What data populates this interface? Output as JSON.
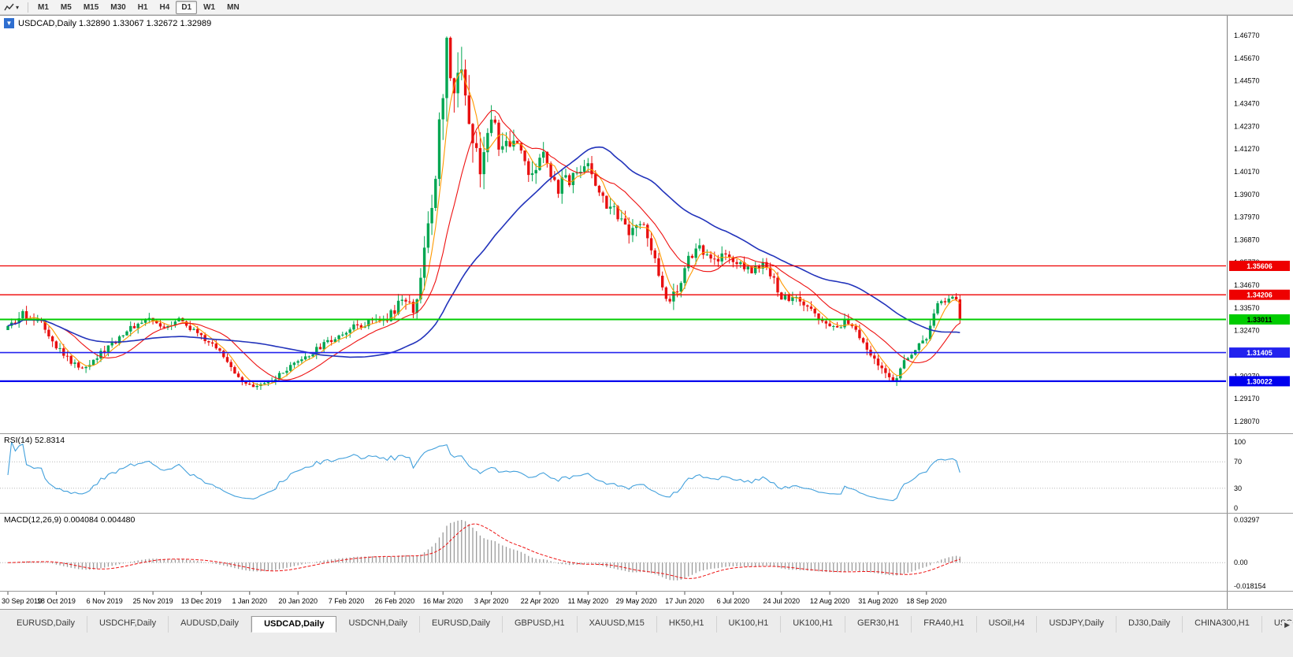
{
  "toolbar": {
    "timeframes": [
      "M1",
      "M5",
      "M15",
      "M30",
      "H1",
      "H4",
      "D1",
      "W1",
      "MN"
    ],
    "active_timeframe": "D1",
    "tools_icon": "chart-line",
    "caret_glyph": "▾"
  },
  "chart_header": {
    "collapse_glyph": "▼",
    "text": "USDCAD,Daily 1.32890 1.33067 1.32672 1.32989"
  },
  "rsi_panel": {
    "label": "RSI(14) 52.8314",
    "axis_labels": [
      "100",
      "70",
      "30",
      "0"
    ],
    "dotted_levels": [
      70,
      30
    ],
    "line_color": "#42a0dc"
  },
  "macd_panel": {
    "label": "MACD(12,26,9) 0.004084 0.004480",
    "axis_labels": [
      "0.03297",
      "0.00",
      "-0.018154"
    ]
  },
  "tabs": {
    "items": [
      "EURUSD,Daily",
      "USDCHF,Daily",
      "AUDUSD,Daily",
      "USDCAD,Daily",
      "USDCNH,Daily",
      "EURUSD,Daily",
      "GBPUSD,H1",
      "XAUUSD,M15",
      "HK50,H1",
      "UK100,H1",
      "UK100,H1",
      "GER30,H1",
      "FRA40,H1",
      "USOil,H4",
      "USDJPY,Daily",
      "DJ30,Daily",
      "CHINA300,H1",
      "USOil,H"
    ],
    "active_index": 3,
    "scroll_icon": "▶"
  },
  "chart_data": {
    "type": "candlestick",
    "symbol": "USDCAD",
    "timeframe": "Daily",
    "ohlc": {
      "open": 1.3289,
      "high": 1.33067,
      "low": 1.32672,
      "close": 1.32989
    },
    "bars": 257,
    "bars_per_x_label": 13,
    "x_labels": [
      "30 Sep 2019",
      "18 Oct 2019",
      "6 Nov 2019",
      "25 Nov 2019",
      "13 Dec 2019",
      "1 Jan 2020",
      "20 Jan 2020",
      "7 Feb 2020",
      "26 Feb 2020",
      "16 Mar 2020",
      "3 Apr 2020",
      "22 Apr 2020",
      "11 May 2020",
      "29 May 2020",
      "17 Jun 2020",
      "6 Jul 2020",
      "24 Jul 2020",
      "12 Aug 2020",
      "31 Aug 2020",
      "18 Sep 2020"
    ],
    "price_axis_labels": [
      "1.46770",
      "1.45670",
      "1.44570",
      "1.43470",
      "1.42370",
      "1.41270",
      "1.40170",
      "1.39070",
      "1.37970",
      "1.36870",
      "1.35770",
      "1.34670",
      "1.33570",
      "1.32470",
      "1.31370",
      "1.30270",
      "1.29170",
      "1.28070"
    ],
    "visible_high": 1.4672,
    "visible_low": 1.2949,
    "candle_up_color": "#00a651",
    "candle_down_color": "#e81010",
    "horizontal_lines": [
      {
        "price": 1.35606,
        "label": "1.35606",
        "color": "#ee0000",
        "text_color": "#ffffff",
        "width": 1.3
      },
      {
        "price": 1.34206,
        "label": "1.34206",
        "color": "#ee0000",
        "text_color": "#ffffff",
        "width": 1.3
      },
      {
        "price": 1.33011,
        "label": "1.33011",
        "color": "#00cc00",
        "text_color": "#000000",
        "width": 2
      },
      {
        "price": 1.31405,
        "label": "1.31405",
        "color": "#2222ee",
        "text_color": "#ffffff",
        "width": 1.6
      },
      {
        "price": 1.30022,
        "label": "1.30022",
        "color": "#0000ee",
        "text_color": "#ffffff",
        "width": 2.2
      }
    ],
    "moving_averages": [
      {
        "period": 5,
        "color": "#ff9900"
      },
      {
        "period": 15,
        "color": "#ee1111"
      },
      {
        "period": 45,
        "color": "#2233bb"
      }
    ],
    "rsi": {
      "period": 14,
      "current": 52.8314,
      "range": [
        0,
        100
      ]
    },
    "macd": {
      "fast": 12,
      "slow": 26,
      "signal": 9,
      "values": [
        0.004084,
        0.00448
      ],
      "range": [
        -0.018154,
        0.03297
      ],
      "hist_color": "#9a9a9a",
      "signal_color": "#ee1111"
    },
    "close_anchors": [
      [
        0,
        1.325,
        0.0038
      ],
      [
        4,
        1.3322,
        0.0036
      ],
      [
        9,
        1.33,
        0.0036
      ],
      [
        14,
        1.315,
        0.0038
      ],
      [
        19,
        1.3062,
        0.0036
      ],
      [
        25,
        1.3135,
        0.0034
      ],
      [
        31,
        1.3235,
        0.0032
      ],
      [
        37,
        1.3305,
        0.003
      ],
      [
        42,
        1.3268,
        0.0028
      ],
      [
        46,
        1.3308,
        0.0028
      ],
      [
        51,
        1.3225,
        0.0028
      ],
      [
        56,
        1.3165,
        0.0028
      ],
      [
        61,
        1.3048,
        0.0028
      ],
      [
        66,
        1.2962,
        0.0026
      ],
      [
        71,
        1.3002,
        0.0026
      ],
      [
        78,
        1.3092,
        0.0026
      ],
      [
        85,
        1.3178,
        0.0026
      ],
      [
        91,
        1.3248,
        0.0028
      ],
      [
        97,
        1.3292,
        0.003
      ],
      [
        102,
        1.331,
        0.004
      ],
      [
        106,
        1.3392,
        0.005
      ],
      [
        109,
        1.3345,
        0.0055
      ],
      [
        112,
        1.361,
        0.0085
      ],
      [
        115,
        1.4005,
        0.012
      ],
      [
        118,
        1.4625,
        0.0145
      ],
      [
        120,
        1.4415,
        0.014
      ],
      [
        122,
        1.4545,
        0.013
      ],
      [
        125,
        1.4175,
        0.0115
      ],
      [
        127,
        1.4055,
        0.01
      ],
      [
        130,
        1.4255,
        0.009
      ],
      [
        133,
        1.4115,
        0.008
      ],
      [
        137,
        1.4175,
        0.0072
      ],
      [
        141,
        1.3978,
        0.0068
      ],
      [
        144,
        1.4105,
        0.0062
      ],
      [
        148,
        1.3942,
        0.006
      ],
      [
        152,
        1.3998,
        0.0058
      ],
      [
        156,
        1.4072,
        0.0056
      ],
      [
        159,
        1.3902,
        0.0056
      ],
      [
        163,
        1.3832,
        0.0054
      ],
      [
        167,
        1.3702,
        0.0054
      ],
      [
        171,
        1.3778,
        0.0052
      ],
      [
        175,
        1.3512,
        0.0052
      ],
      [
        178,
        1.3382,
        0.005
      ],
      [
        180,
        1.3438,
        0.0048
      ],
      [
        183,
        1.3588,
        0.0046
      ],
      [
        186,
        1.3668,
        0.0044
      ],
      [
        189,
        1.3572,
        0.0042
      ],
      [
        193,
        1.3618,
        0.004
      ],
      [
        196,
        1.3582,
        0.0038
      ],
      [
        200,
        1.3542,
        0.0036
      ],
      [
        204,
        1.3568,
        0.0036
      ],
      [
        208,
        1.3412,
        0.0036
      ],
      [
        212,
        1.3392,
        0.0034
      ],
      [
        216,
        1.3342,
        0.0034
      ],
      [
        221,
        1.3252,
        0.0034
      ],
      [
        226,
        1.3298,
        0.0034
      ],
      [
        230,
        1.3182,
        0.0034
      ],
      [
        234,
        1.3092,
        0.0034
      ],
      [
        238,
        1.3006,
        0.0032
      ],
      [
        242,
        1.3118,
        0.0032
      ],
      [
        247,
        1.3212,
        0.0032
      ],
      [
        250,
        1.3368,
        0.003
      ],
      [
        253,
        1.3412,
        0.0028
      ],
      [
        255,
        1.3398,
        0.0026
      ],
      [
        256,
        1.3299,
        0.0024
      ]
    ]
  }
}
